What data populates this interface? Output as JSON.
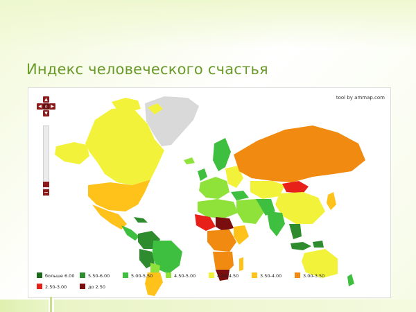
{
  "slide": {
    "title": "Индекс человеческого счастья"
  },
  "map": {
    "credit": "tool by ammap.com",
    "no_data_color": "#d9d9d9",
    "controls": {
      "home_icon": "home-icon",
      "pan_icons": [
        "arrow-up-icon",
        "arrow-left-icon",
        "arrow-right-icon",
        "arrow-down-icon"
      ],
      "zoom_in_label": "+",
      "zoom_out_label": "−"
    },
    "legend": [
      {
        "label": "больше 6.00",
        "color": "#1a6b1a"
      },
      {
        "label": "5.50-6.00",
        "color": "#2e8b2e"
      },
      {
        "label": "5.00-5.50",
        "color": "#3fbf3f"
      },
      {
        "label": "4.50-5.00",
        "color": "#8fe23a"
      },
      {
        "label": "4.00-4.50",
        "color": "#f2f23a"
      },
      {
        "label": "3.50-4.00",
        "color": "#ffc21a"
      },
      {
        "label": "3.00-3.50",
        "color": "#f08a10"
      },
      {
        "label": "2.50-3.00",
        "color": "#e8201a"
      },
      {
        "label": "до 2.50",
        "color": "#7a0e0e"
      }
    ]
  }
}
